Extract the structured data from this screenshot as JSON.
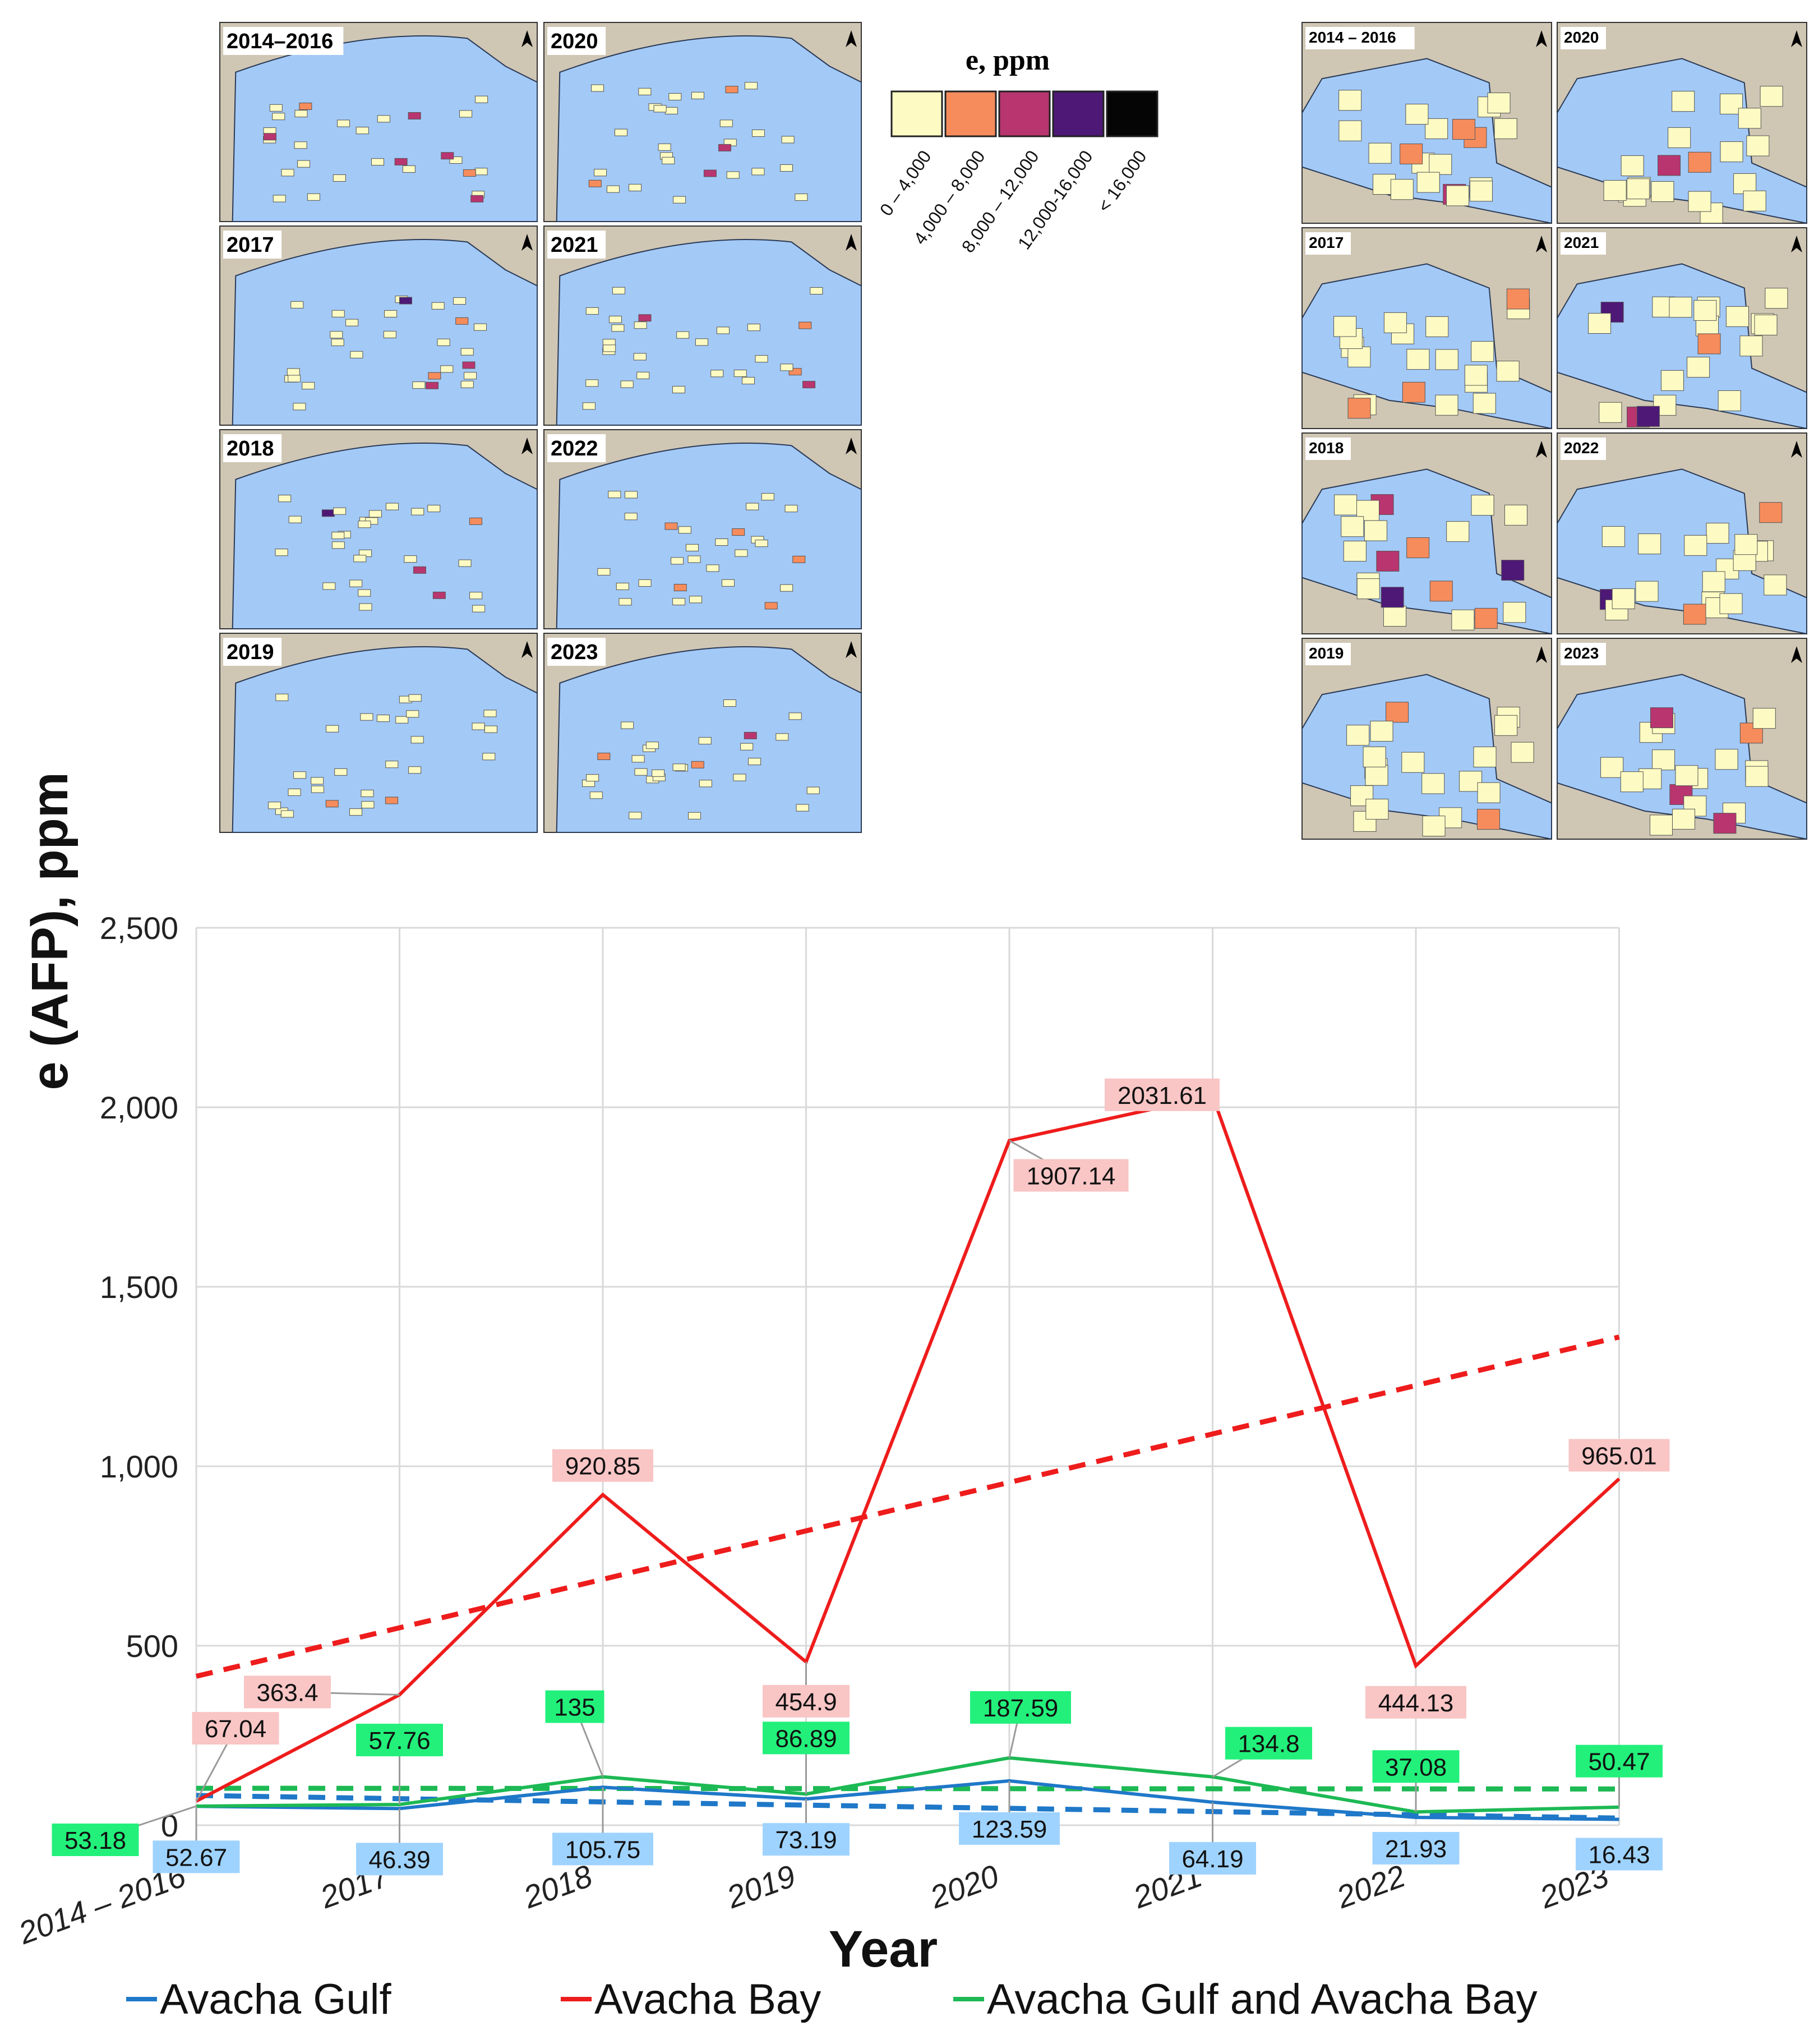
{
  "chart_data": {
    "type": "line",
    "ylabel": "e (AFP), ppm",
    "xlabel": "Year",
    "categories": [
      "2014 – 2016",
      "2017",
      "2018",
      "2019",
      "2020",
      "2021",
      "2022",
      "2023"
    ],
    "ylim": [
      0,
      2500
    ],
    "yticks": [
      0,
      500,
      1000,
      1500,
      2000,
      2500
    ],
    "ytick_labels": [
      "0",
      "500",
      "1,000",
      "1,500",
      "2,000",
      "2,500"
    ],
    "grid": true,
    "legend_position": "bottom",
    "series": [
      {
        "name": "Avacha Gulf",
        "color": "#1f78c8",
        "label_bg": "#9fd3ff",
        "values": [
          52.67,
          46.39,
          105.75,
          73.19,
          123.59,
          64.19,
          21.93,
          16.43
        ],
        "labels": [
          "52.67",
          "46.39",
          "105.75",
          "73.19",
          "123.59",
          "64.19",
          "21.93",
          "16.43"
        ],
        "trend": [
          83,
          20
        ]
      },
      {
        "name": "Avacha Bay",
        "color": "#ee1c1c",
        "label_bg": "#f9c5c5",
        "values": [
          67.04,
          363.4,
          920.85,
          454.9,
          1907.14,
          2031.61,
          444.13,
          965.01
        ],
        "labels": [
          "67.04",
          "363.4",
          "920.85",
          "454.9",
          "1907.14",
          "2031.61",
          "444.13",
          "965.01"
        ],
        "trend": [
          415,
          1360
        ]
      },
      {
        "name": "Avacha Gulf and Avacha Bay",
        "color": "#1db954",
        "label_bg": "#22f07a",
        "values": [
          53.18,
          57.76,
          135,
          86.89,
          187.59,
          134.8,
          37.08,
          50.47
        ],
        "labels": [
          "53.18",
          "57.76",
          "135",
          "86.89",
          "187.59",
          "134.8",
          "37.08",
          "50.47"
        ],
        "trend": [
          103,
          101
        ]
      }
    ]
  },
  "inset_maps": {
    "gulf_panels": [
      "2014–2016",
      "2020",
      "2017",
      "2021",
      "2018",
      "2022",
      "2019",
      "2023"
    ],
    "bay_panels": [
      "2014 – 2016",
      "2020",
      "2017",
      "2021",
      "2018",
      "2022",
      "2019",
      "2023"
    ],
    "land_color": "#cfc6b4",
    "water_color": "#a3c9f7"
  },
  "color_scale": {
    "title": "e, ppm",
    "bins": [
      {
        "label": "0 – 4,000",
        "color": "#fdfbc3"
      },
      {
        "label": "4,000 – 8,000",
        "color": "#f68c5c"
      },
      {
        "label": "8,000 – 12,000",
        "color": "#b8356f"
      },
      {
        "label": "12,000-16,000",
        "color": "#4d1876"
      },
      {
        "label": "< 16,000",
        "color": "#050505"
      }
    ]
  }
}
